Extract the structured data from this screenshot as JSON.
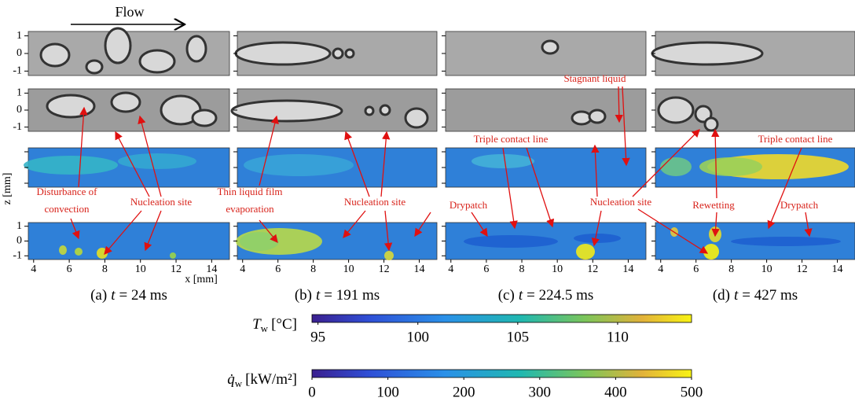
{
  "flow_label": "Flow",
  "z_axis_label": "z [mm]",
  "x_axis_label": "x [mm]",
  "z_ticks": [
    1,
    0,
    -1
  ],
  "xlim": [
    3.7,
    15.0
  ],
  "x_ticks": [
    4,
    6,
    8,
    10,
    12,
    14
  ],
  "panels": [
    {
      "label": "(a)",
      "t_symbol": "t",
      "time": "= 24 ms"
    },
    {
      "label": "(b)",
      "t_symbol": "t",
      "time": "= 191 ms"
    },
    {
      "label": "(c)",
      "t_symbol": "t",
      "time": "= 224.5 ms"
    },
    {
      "label": "(d)",
      "t_symbol": "t",
      "time": "= 427 ms"
    }
  ],
  "annotations": [
    [
      "Disturbance of",
      "convection"
    ],
    [
      "Nucleation site"
    ],
    [
      "Thin liquid film",
      "evaporation"
    ],
    [
      "Nucleation site"
    ],
    [
      "Stagnant liquid"
    ],
    [
      "Triple contact line"
    ],
    [
      "Drypatch"
    ],
    [
      "Nucleation site"
    ],
    [
      "Rewetting"
    ],
    [
      "Triple contact line"
    ],
    [
      "Drypatch"
    ]
  ],
  "colorbars": [
    {
      "symbol": "T",
      "subscript": "w",
      "unit": "[°C]",
      "lim": [
        94.7,
        113.7
      ],
      "ticks": [
        95,
        100,
        105,
        110
      ]
    },
    {
      "symbol": "q̇",
      "subscript": "w",
      "unit": "[kW/m²]",
      "lim": [
        0,
        500
      ],
      "ticks": [
        0,
        100,
        200,
        300,
        400,
        500
      ]
    }
  ]
}
